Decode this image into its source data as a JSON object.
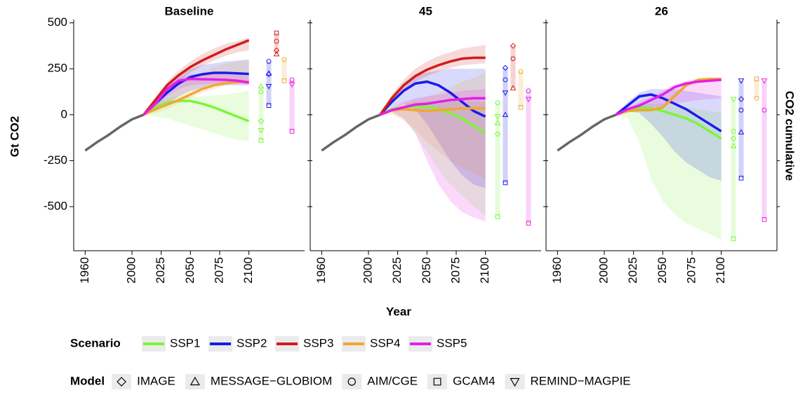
{
  "y_label": "Gt CO2",
  "x_label": "Year",
  "strip_label": "CO2 cumulative",
  "history": {
    "x": [
      1960,
      1970,
      1980,
      1990,
      2000,
      2010
    ],
    "values": [
      -195,
      -150,
      -110,
      -65,
      -25,
      0
    ],
    "color": "#666666"
  },
  "scenario_legend": {
    "title": "Scenario",
    "names": [
      "SSP1",
      "SSP2",
      "SSP3",
      "SSP4",
      "SSP5"
    ],
    "colors": [
      "#7cf53a",
      "#1b1be8",
      "#d01c1c",
      "#f0a830",
      "#e51ee5"
    ]
  },
  "model_legend": {
    "title": "Model",
    "names": [
      "IMAGE",
      "MESSAGE−GLOBIOM",
      "AIM/CGE",
      "GCAM4",
      "REMIND−MAGPIE"
    ],
    "shapes": [
      "diamond",
      "triangle-up",
      "circle",
      "square",
      "triangle-down"
    ]
  },
  "chart_data": [
    {
      "type": "line",
      "title": "Baseline",
      "xlim": [
        1955,
        2105
      ],
      "ylim": [
        -740,
        510
      ],
      "xticks": [
        1960,
        2000,
        2025,
        2050,
        2075,
        2100
      ],
      "yticks": [
        -500,
        -250,
        0,
        250,
        500
      ],
      "x": [
        2010,
        2020,
        2030,
        2040,
        2050,
        2060,
        2070,
        2080,
        2090,
        2100
      ],
      "series": [
        {
          "name": "SSP1",
          "values": [
            0,
            40,
            65,
            75,
            75,
            60,
            40,
            15,
            -10,
            -35
          ],
          "lower": [
            0,
            -10,
            -20,
            -40,
            -60,
            -80,
            -100,
            -120,
            -135,
            -145
          ],
          "upper": [
            0,
            60,
            90,
            100,
            100,
            100,
            105,
            110,
            120,
            130
          ],
          "models": [
            -35,
            155,
            125,
            -140,
            -85
          ]
        },
        {
          "name": "SSP2",
          "values": [
            0,
            60,
            120,
            170,
            205,
            220,
            228,
            228,
            225,
            222
          ],
          "lower": [
            0,
            20,
            60,
            100,
            130,
            145,
            155,
            160,
            160,
            160
          ],
          "upper": [
            0,
            80,
            150,
            210,
            250,
            270,
            280,
            290,
            295,
            300
          ],
          "models": [
            220,
            225,
            290,
            50,
            155
          ]
        },
        {
          "name": "SSP3",
          "values": [
            0,
            80,
            160,
            215,
            260,
            295,
            325,
            355,
            380,
            405
          ],
          "lower": [
            0,
            60,
            130,
            180,
            230,
            265,
            295,
            320,
            340,
            350
          ],
          "upper": [
            0,
            90,
            180,
            240,
            290,
            330,
            360,
            385,
            400,
            420
          ],
          "models": [
            350,
            330,
            400,
            445,
            null
          ]
        },
        {
          "name": "SSP4",
          "values": [
            0,
            30,
            55,
            80,
            110,
            140,
            160,
            172,
            178,
            180
          ],
          "lower": [
            0,
            10,
            30,
            60,
            90,
            120,
            140,
            160,
            170,
            180
          ],
          "upper": [
            0,
            50,
            100,
            150,
            200,
            230,
            260,
            280,
            290,
            300
          ],
          "models": [
            null,
            null,
            300,
            185,
            null
          ]
        },
        {
          "name": "SSP5",
          "values": [
            0,
            60,
            140,
            185,
            195,
            193,
            192,
            190,
            185,
            175
          ],
          "lower": [
            0,
            40,
            100,
            140,
            160,
            165,
            168,
            168,
            168,
            165
          ],
          "upper": [
            0,
            70,
            150,
            200,
            220,
            225,
            225,
            220,
            215,
            210
          ],
          "models": [
            null,
            null,
            190,
            -90,
            165
          ]
        }
      ]
    },
    {
      "type": "line",
      "title": "45",
      "xlim": [
        1955,
        2105
      ],
      "ylim": [
        -740,
        510
      ],
      "xticks": [
        1960,
        2000,
        2025,
        2050,
        2075,
        2100
      ],
      "x": [
        2010,
        2020,
        2030,
        2040,
        2050,
        2060,
        2070,
        2080,
        2090,
        2100
      ],
      "series": [
        {
          "name": "SSP1",
          "values": [
            0,
            30,
            40,
            45,
            45,
            30,
            10,
            -20,
            -60,
            -100
          ],
          "lower": [
            0,
            10,
            -20,
            -100,
            -200,
            -300,
            -380,
            -440,
            -500,
            -550
          ],
          "upper": [
            0,
            40,
            60,
            70,
            75,
            75,
            75,
            75,
            72,
            70
          ],
          "models": [
            -105,
            -45,
            65,
            -555,
            -10
          ]
        },
        {
          "name": "SSP2",
          "values": [
            0,
            70,
            130,
            170,
            180,
            160,
            120,
            70,
            20,
            -10
          ],
          "lower": [
            0,
            40,
            60,
            30,
            -50,
            -150,
            -250,
            -330,
            -380,
            -400
          ],
          "upper": [
            0,
            90,
            160,
            210,
            230,
            240,
            250,
            250,
            250,
            250
          ],
          "models": [
            255,
            0,
            190,
            -370,
            120
          ]
        },
        {
          "name": "SSP3",
          "values": [
            0,
            90,
            160,
            210,
            245,
            270,
            290,
            305,
            310,
            310
          ],
          "lower": [
            0,
            70,
            130,
            180,
            210,
            235,
            255,
            270,
            275,
            280
          ],
          "upper": [
            0,
            110,
            190,
            250,
            290,
            320,
            340,
            360,
            370,
            380
          ],
          "models": [
            375,
            145,
            305,
            null,
            null
          ]
        },
        {
          "name": "SSP4",
          "values": [
            0,
            25,
            30,
            25,
            20,
            25,
            30,
            35,
            35,
            35
          ],
          "lower": [
            0,
            0,
            -30,
            -80,
            -150,
            -200,
            -250,
            -290,
            -320,
            -350
          ],
          "upper": [
            0,
            40,
            60,
            80,
            100,
            120,
            150,
            180,
            200,
            230
          ],
          "models": [
            null,
            null,
            235,
            40,
            null
          ]
        },
        {
          "name": "SSP5",
          "values": [
            0,
            25,
            40,
            55,
            60,
            70,
            80,
            85,
            90,
            90
          ],
          "lower": [
            0,
            15,
            -20,
            -100,
            -250,
            -380,
            -470,
            -530,
            -560,
            -580
          ],
          "upper": [
            0,
            40,
            70,
            90,
            100,
            110,
            120,
            130,
            135,
            140
          ],
          "models": [
            null,
            null,
            130,
            -590,
            85
          ]
        }
      ]
    },
    {
      "type": "line",
      "title": "26",
      "xlim": [
        1955,
        2105
      ],
      "ylim": [
        -740,
        510
      ],
      "xticks": [
        1960,
        2000,
        2025,
        2050,
        2075,
        2100
      ],
      "x": [
        2010,
        2020,
        2030,
        2040,
        2050,
        2060,
        2070,
        2080,
        2090,
        2100
      ],
      "series": [
        {
          "name": "SSP1",
          "values": [
            0,
            30,
            40,
            35,
            20,
            0,
            -20,
            -50,
            -90,
            -130
          ],
          "lower": [
            0,
            -20,
            -150,
            -350,
            -470,
            -540,
            -590,
            -620,
            -650,
            -680
          ],
          "upper": [
            0,
            40,
            60,
            60,
            60,
            50,
            40,
            30,
            20,
            10
          ],
          "models": [
            -130,
            -170,
            -90,
            -675,
            85
          ]
        },
        {
          "name": "SSP2",
          "values": [
            0,
            50,
            100,
            110,
            90,
            60,
            30,
            -10,
            -50,
            -90
          ],
          "lower": [
            0,
            20,
            10,
            -50,
            -120,
            -200,
            -260,
            -300,
            -340,
            -360
          ],
          "upper": [
            0,
            70,
            120,
            140,
            140,
            140,
            130,
            120,
            110,
            100
          ],
          "models": [
            85,
            -95,
            25,
            -345,
            185
          ]
        },
        {
          "name": "SSP4",
          "values": [
            0,
            20,
            25,
            25,
            40,
            100,
            160,
            190,
            195,
            195
          ],
          "lower": [
            0,
            15,
            20,
            20,
            30,
            90,
            150,
            180,
            185,
            185
          ],
          "upper": [
            0,
            30,
            35,
            40,
            60,
            120,
            170,
            195,
            200,
            200
          ],
          "models": [
            null,
            null,
            90,
            195,
            null
          ]
        },
        {
          "name": "SSP5",
          "values": [
            0,
            30,
            50,
            80,
            110,
            150,
            170,
            180,
            185,
            190
          ],
          "lower": [
            0,
            15,
            30,
            40,
            50,
            60,
            70,
            80,
            85,
            90
          ],
          "upper": [
            0,
            40,
            70,
            100,
            130,
            165,
            185,
            195,
            200,
            200
          ],
          "models": [
            null,
            null,
            25,
            -570,
            185
          ]
        }
      ]
    }
  ]
}
